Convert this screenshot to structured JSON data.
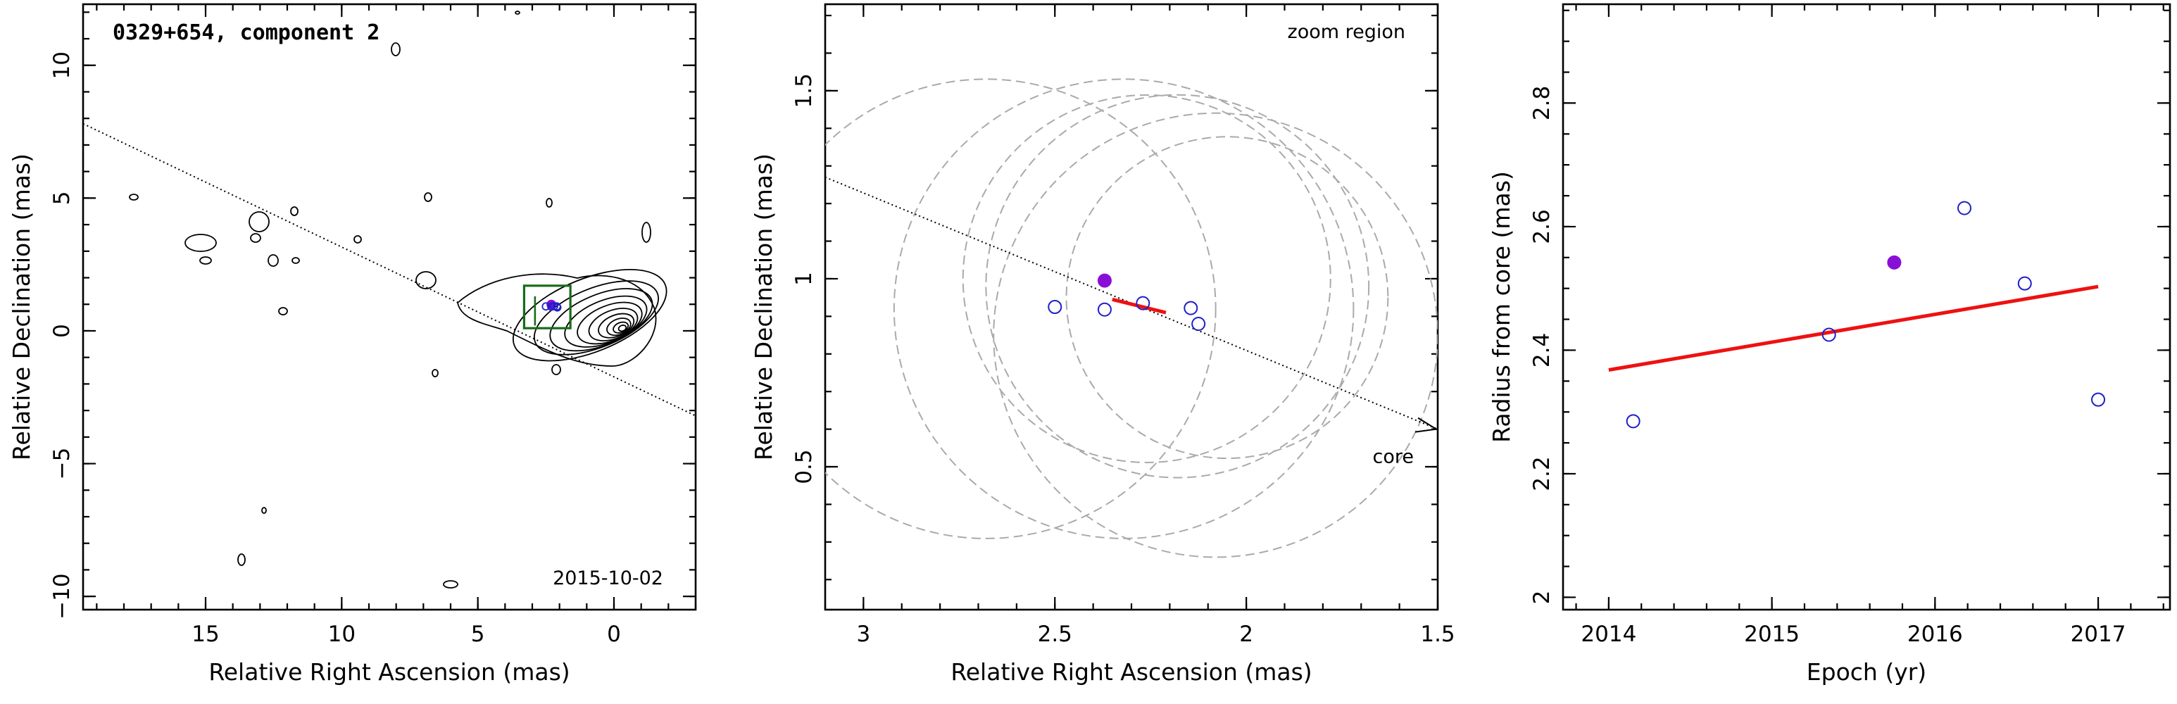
{
  "chart_data": [
    {
      "type": "scatter",
      "title": "0329+654, component 2",
      "xlabel": "Relative Right Ascension (mas)",
      "ylabel": "Relative Declination (mas)",
      "xlim": [
        19.5,
        -3
      ],
      "ylim": [
        -10.5,
        12.3
      ],
      "xticks": [
        15,
        10,
        5,
        0
      ],
      "yticks": [
        -10,
        -5,
        0,
        5,
        10
      ],
      "yticklabels": [
        "−10",
        "−5",
        "0",
        "5",
        "10"
      ],
      "annotation": "2015-10-02",
      "jet_axis": {
        "x": [
          19.5,
          -3
        ],
        "y": [
          7.8,
          -3.2
        ]
      },
      "components": [
        {
          "x": 2.3,
          "y": 0.99,
          "fill": true
        },
        {
          "x": 2.5,
          "y": 0.92
        },
        {
          "x": 2.3,
          "y": 0.91
        },
        {
          "x": 2.2,
          "y": 0.93
        },
        {
          "x": 2.1,
          "y": 0.92
        },
        {
          "x": 2.08,
          "y": 0.88
        }
      ],
      "zoom_box": {
        "x": [
          3.3,
          1.6
        ],
        "y": [
          1.7,
          0.1
        ]
      },
      "colors": {
        "contour": "#000000",
        "box": "#1a6b1a",
        "component": "#1f1fcc",
        "selected": "#8a0fd6"
      }
    },
    {
      "type": "scatter",
      "title": "",
      "annotation_top": "zoom region",
      "annotation_core": "core",
      "xlabel": "Relative Right Ascension (mas)",
      "ylabel": "Relative Declination (mas)",
      "xlim": [
        3.1,
        1.5
      ],
      "ylim": [
        0.12,
        1.73
      ],
      "xticks": [
        3,
        2.5,
        2,
        1.5
      ],
      "yticks": [
        0.5,
        1,
        1.5
      ],
      "jet_axis": {
        "x": [
          3.1,
          1.5
        ],
        "y": [
          1.27,
          0.6
        ]
      },
      "points": [
        {
          "x": 2.5,
          "y": 0.925
        },
        {
          "x": 2.37,
          "y": 0.918
        },
        {
          "x": 2.27,
          "y": 0.935
        },
        {
          "x": 2.145,
          "y": 0.922
        },
        {
          "x": 2.125,
          "y": 0.88
        }
      ],
      "selected_point": {
        "x": 2.37,
        "y": 0.995
      },
      "trajectory": {
        "x": [
          2.35,
          2.21
        ],
        "y": [
          0.945,
          0.91
        ]
      },
      "beam_circles": [
        {
          "x": 2.68,
          "y": 0.92,
          "r": 0.6
        },
        {
          "x": 2.32,
          "y": 0.92,
          "r": 0.6
        },
        {
          "x": 2.26,
          "y": 1.0,
          "r": 0.48
        },
        {
          "x": 2.18,
          "y": 0.98,
          "r": 0.5
        },
        {
          "x": 2.08,
          "y": 0.85,
          "r": 0.58
        },
        {
          "x": 2.05,
          "y": 0.95,
          "r": 0.42
        }
      ],
      "colors": {
        "point": "#1f1fcc",
        "selected": "#8a0fd6",
        "trajectory": "#ee1111",
        "circles": "#aaaaaa"
      }
    },
    {
      "type": "scatter",
      "title": "",
      "xlabel": "Epoch (yr)",
      "ylabel": "Radius from core (mas)",
      "xlim": [
        2013.72,
        2017.44
      ],
      "ylim": [
        1.98,
        2.96
      ],
      "xticks": [
        2014,
        2015,
        2016,
        2017
      ],
      "yticks": [
        2,
        2.2,
        2.4,
        2.6,
        2.8
      ],
      "points": [
        {
          "x": 2014.15,
          "y": 2.285
        },
        {
          "x": 2015.35,
          "y": 2.425
        },
        {
          "x": 2016.18,
          "y": 2.63
        },
        {
          "x": 2016.55,
          "y": 2.508
        },
        {
          "x": 2017.0,
          "y": 2.32
        }
      ],
      "selected_point": {
        "x": 2015.75,
        "y": 2.542
      },
      "fit_line": {
        "x": [
          2014.0,
          2017.0
        ],
        "y": [
          2.368,
          2.503
        ]
      },
      "colors": {
        "point": "#1f1fcc",
        "selected": "#8a0fd6",
        "fit": "#ee1111"
      }
    }
  ]
}
